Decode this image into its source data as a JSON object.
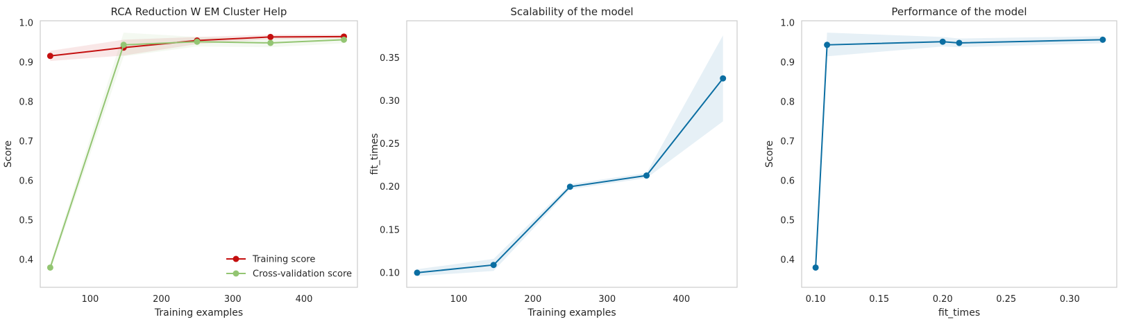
{
  "chart_data": [
    {
      "type": "line",
      "title": "RCA Reduction W EM Cluster Help",
      "xlabel": "Training examples",
      "ylabel": "Score",
      "xlim": [
        30,
        475
      ],
      "ylim": [
        0.33,
        1.005
      ],
      "xticks": [
        100,
        200,
        300,
        400
      ],
      "yticks": [
        0.4,
        0.5,
        0.6,
        0.7,
        0.8,
        0.9,
        1.0
      ],
      "xtick_labels": [
        "100",
        "200",
        "300",
        "400"
      ],
      "ytick_labels": [
        "0.4",
        "0.5",
        "0.6",
        "0.7",
        "0.8",
        "0.9",
        "1.0"
      ],
      "grid": false,
      "legend_position": "lower-right",
      "x": [
        44,
        147,
        250,
        353,
        456
      ],
      "series": [
        {
          "name": "Training score",
          "color": "#c40f0f",
          "values": [
            0.916,
            0.937,
            0.955,
            0.964,
            0.965
          ],
          "band_lower": [
            0.903,
            0.917,
            0.946,
            0.958,
            0.96
          ],
          "band_upper": [
            0.929,
            0.957,
            0.964,
            0.97,
            0.97
          ]
        },
        {
          "name": "Cross-validation score",
          "color": "#93c572",
          "values": [
            0.38,
            0.944,
            0.952,
            0.949,
            0.957
          ],
          "band_lower": [
            0.37,
            0.915,
            0.94,
            0.938,
            0.948
          ],
          "band_upper": [
            0.39,
            0.975,
            0.964,
            0.96,
            0.966
          ]
        }
      ]
    },
    {
      "type": "line",
      "title": "Scalability of the model",
      "xlabel": "Training examples",
      "ylabel": "fit_times",
      "xlim": [
        30,
        475
      ],
      "ylim": [
        0.083,
        0.393
      ],
      "xticks": [
        100,
        200,
        300,
        400
      ],
      "yticks": [
        0.1,
        0.15,
        0.2,
        0.25,
        0.3,
        0.35
      ],
      "xtick_labels": [
        "100",
        "200",
        "300",
        "400"
      ],
      "ytick_labels": [
        "0.10",
        "0.15",
        "0.20",
        "0.25",
        "0.30",
        "0.35"
      ],
      "grid": false,
      "x": [
        44,
        147,
        250,
        353,
        456
      ],
      "series": [
        {
          "color": "#0b6ea2",
          "values": [
            0.1,
            0.109,
            0.2,
            0.213,
            0.326
          ],
          "band_lower": [
            0.096,
            0.102,
            0.197,
            0.21,
            0.276
          ],
          "band_upper": [
            0.104,
            0.116,
            0.203,
            0.216,
            0.376
          ]
        }
      ]
    },
    {
      "type": "line",
      "title": "Performance of the model",
      "xlabel": "fit_times",
      "ylabel": "Score",
      "xlim": [
        0.089,
        0.337
      ],
      "ylim": [
        0.33,
        1.005
      ],
      "xticks": [
        0.1,
        0.15,
        0.2,
        0.25,
        0.3
      ],
      "yticks": [
        0.4,
        0.5,
        0.6,
        0.7,
        0.8,
        0.9,
        1.0
      ],
      "xtick_labels": [
        "0.10",
        "0.15",
        "0.20",
        "0.25",
        "0.30"
      ],
      "ytick_labels": [
        "0.4",
        "0.5",
        "0.6",
        "0.7",
        "0.8",
        "0.9",
        "1.0"
      ],
      "grid": false,
      "x": [
        0.1,
        0.109,
        0.2,
        0.213,
        0.326
      ],
      "series": [
        {
          "color": "#0b6ea2",
          "values": [
            0.38,
            0.944,
            0.952,
            0.949,
            0.957
          ],
          "band_lower": [
            0.37,
            0.915,
            0.94,
            0.938,
            0.948
          ],
          "band_upper": [
            0.39,
            0.975,
            0.964,
            0.96,
            0.966
          ]
        }
      ]
    }
  ]
}
